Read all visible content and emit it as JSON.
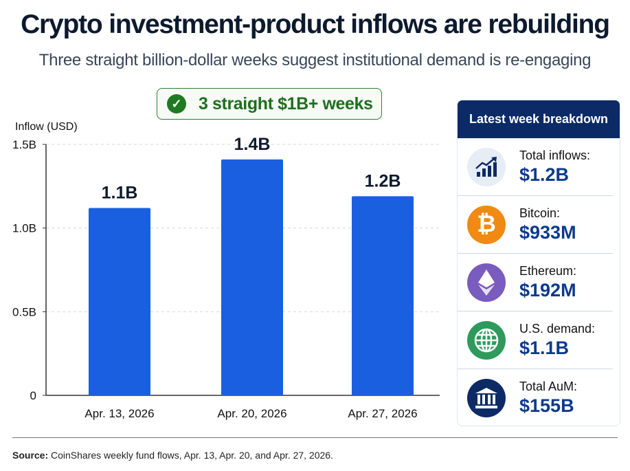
{
  "title": "Crypto investment-product inflows are rebuilding",
  "subtitle": "Three straight billion-dollar weeks suggest institutional demand is re-engaging",
  "badge": {
    "text": "3 straight $1B+ weeks",
    "icon": "check-circle-icon",
    "color": "#1f7a22"
  },
  "chart_data": {
    "type": "bar",
    "ylabel": "Inflow (USD)",
    "categories": [
      "Apr. 13, 2026",
      "Apr. 20, 2026",
      "Apr. 27, 2026"
    ],
    "values": [
      1.12,
      1.41,
      1.19
    ],
    "data_labels": [
      "1.1B",
      "1.4B",
      "1.2B"
    ],
    "yticks": [
      "0",
      "0.5B",
      "1.0B",
      "1.5B"
    ],
    "ylim": [
      0,
      1.5
    ],
    "grid": true,
    "bar_color": "#1a5fe0"
  },
  "panel": {
    "title": "Latest week breakdown",
    "items": [
      {
        "label": "Total inflows:",
        "value": "$1.2B",
        "icon": "chart-up-icon",
        "color": "#e6edf5"
      },
      {
        "label": "Bitcoin:",
        "value": "$933M",
        "icon": "bitcoin-icon",
        "color": "#f08a12"
      },
      {
        "label": "Ethereum:",
        "value": "$192M",
        "icon": "ethereum-icon",
        "color": "#7a5bbf"
      },
      {
        "label": "U.S. demand:",
        "value": "$1.1B",
        "icon": "globe-icon",
        "color": "#2e9a5c"
      },
      {
        "label": "Total AuM:",
        "value": "$155B",
        "icon": "bank-icon",
        "color": "#0b2a66"
      }
    ]
  },
  "source": {
    "label": "Source:",
    "text": " CoinShares weekly fund flows, Apr. 13, Apr. 20, and Apr. 27, 2026."
  }
}
